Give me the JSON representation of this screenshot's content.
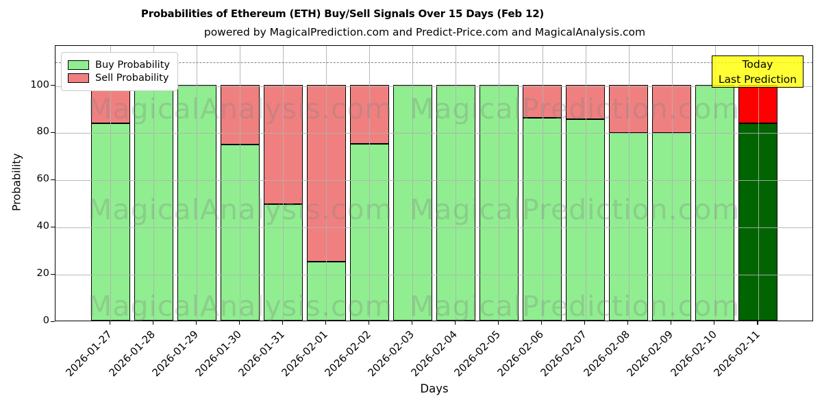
{
  "title": "Probabilities of Ethereum (ETH) Buy/Sell Signals Over 15 Days (Feb 12)",
  "subtitle": "powered by MagicalPrediction.com and Predict-Price.com and MagicalAnalysis.com",
  "axes": {
    "x_label": "Days",
    "y_label": "Probability",
    "y_ticks": [
      0,
      20,
      40,
      60,
      80,
      100
    ]
  },
  "legend": [
    {
      "label": "Buy Probability",
      "color": "#90EE90"
    },
    {
      "label": "Sell Probability",
      "color": "#F08080"
    }
  ],
  "annotation": {
    "line1": "Today",
    "line2": "Last Prediction",
    "bg_color": "#FFFF00"
  },
  "watermarks": {
    "left_text": "MagicalAnalysis.com",
    "right_text": "MagicalPrediction.com"
  },
  "chart_data": {
    "type": "bar",
    "stacked": true,
    "title": "Probabilities of Ethereum (ETH) Buy/Sell Signals Over 15 Days (Feb 12)",
    "xlabel": "Days",
    "ylabel": "Probability",
    "ylim": [
      0,
      117
    ],
    "grid": true,
    "dashed_line_y": 110,
    "legend_position": "upper left",
    "categories": [
      "2026-01-27",
      "2026-01-28",
      "2026-01-29",
      "2026-01-30",
      "2026-01-31",
      "2026-02-01",
      "2026-02-02",
      "2026-02-03",
      "2026-02-04",
      "2026-02-05",
      "2026-02-06",
      "2026-02-07",
      "2026-02-08",
      "2026-02-09",
      "2026-02-10",
      "2026-02-11"
    ],
    "series": [
      {
        "name": "Buy Probability",
        "color": "#90EE90",
        "values": [
          83.5,
          100,
          100,
          74.5,
          49.5,
          25,
          75,
          100,
          100,
          100,
          86,
          85.5,
          79.5,
          79.5,
          100,
          83.5
        ]
      },
      {
        "name": "Sell Probability",
        "color": "#F08080",
        "values": [
          16.5,
          0,
          0,
          25.5,
          50.5,
          75,
          25,
          0,
          0,
          0,
          14,
          14.5,
          20.5,
          20.5,
          0,
          16.5
        ]
      }
    ],
    "today": {
      "index": 15,
      "buy_color": "#006400",
      "sell_color": "#FF0000"
    }
  }
}
